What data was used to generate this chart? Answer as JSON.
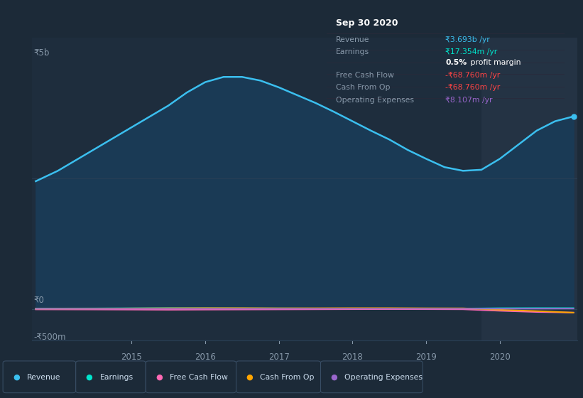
{
  "bg_color": "#1c2a38",
  "plot_bg": "#1e2d3d",
  "overlay_bg": "#243344",
  "ylabel_5b": "₹5b",
  "ylabel_0": "₹0",
  "ylabel_neg500m": "-₹500m",
  "x_labels": [
    "2015",
    "2016",
    "2017",
    "2018",
    "2019",
    "2020"
  ],
  "legend_items": [
    {
      "label": "Revenue",
      "color": "#3bbfef"
    },
    {
      "label": "Earnings",
      "color": "#00e5cc"
    },
    {
      "label": "Free Cash Flow",
      "color": "#ff69b4"
    },
    {
      "label": "Cash From Op",
      "color": "#ffa500"
    },
    {
      "label": "Operating Expenses",
      "color": "#9966cc"
    }
  ],
  "info_box_title": "Sep 30 2020",
  "info_box_bg": "#0a0a0a",
  "info_box_sep_color": "#2a2a3a",
  "info_rows": [
    {
      "label": "Revenue",
      "value": "₹3.693b /yr",
      "vcolor": "#3bbfef",
      "label_color": "#8899aa"
    },
    {
      "label": "Earnings",
      "value": "₹17.354m /yr",
      "vcolor": "#00e5cc",
      "label_color": "#8899aa"
    },
    {
      "label": "",
      "value": "0.5% profit margin",
      "vcolor": "#ffffff",
      "label_color": ""
    },
    {
      "label": "Free Cash Flow",
      "value": "-₹68.760m /yr",
      "vcolor": "#ff4444",
      "label_color": "#8899aa"
    },
    {
      "label": "Cash From Op",
      "value": "-₹68.760m /yr",
      "vcolor": "#ff4444",
      "label_color": "#8899aa"
    },
    {
      "label": "Operating Expenses",
      "value": "₹8.107m /yr",
      "vcolor": "#9966cc",
      "label_color": "#8899aa"
    }
  ],
  "revenue_x": [
    2013.7,
    2014.0,
    2014.3,
    2014.6,
    2014.9,
    2015.2,
    2015.5,
    2015.75,
    2016.0,
    2016.25,
    2016.5,
    2016.75,
    2017.0,
    2017.25,
    2017.5,
    2017.75,
    2018.0,
    2018.25,
    2018.5,
    2018.75,
    2019.0,
    2019.25,
    2019.5,
    2019.75,
    2020.0,
    2020.25,
    2020.5,
    2020.75,
    2021.0
  ],
  "revenue_y": [
    2.45,
    2.65,
    2.9,
    3.15,
    3.4,
    3.65,
    3.9,
    4.15,
    4.35,
    4.45,
    4.45,
    4.38,
    4.25,
    4.1,
    3.95,
    3.78,
    3.6,
    3.42,
    3.25,
    3.05,
    2.88,
    2.72,
    2.65,
    2.67,
    2.88,
    3.15,
    3.42,
    3.6,
    3.693
  ],
  "revenue_color": "#3bbfef",
  "revenue_fill": "#1a3a55",
  "earnings_x": [
    2013.7,
    2014.5,
    2015.0,
    2015.5,
    2016.0,
    2016.5,
    2017.0,
    2017.5,
    2018.0,
    2018.5,
    2019.0,
    2019.5,
    2019.75,
    2020.0,
    2020.5,
    2021.0
  ],
  "earnings_y": [
    0.01,
    0.012,
    0.015,
    0.018,
    0.016,
    0.014,
    0.013,
    0.011,
    0.01,
    0.009,
    0.006,
    0.01,
    0.012,
    0.016,
    0.018,
    0.01735
  ],
  "earnings_color": "#00e5cc",
  "fcf_x": [
    2013.7,
    2014.5,
    2015.0,
    2015.5,
    2016.0,
    2016.5,
    2017.0,
    2017.5,
    2018.0,
    2018.5,
    2019.0,
    2019.5,
    2020.0,
    2020.5,
    2021.0
  ],
  "fcf_y": [
    -0.008,
    -0.01,
    -0.012,
    -0.015,
    -0.012,
    -0.01,
    -0.008,
    -0.006,
    -0.004,
    -0.003,
    -0.004,
    -0.006,
    -0.035,
    -0.058,
    -0.0688
  ],
  "fcf_color": "#ff69b4",
  "cashop_x": [
    2013.7,
    2014.5,
    2015.0,
    2015.5,
    2016.0,
    2016.5,
    2017.0,
    2017.5,
    2018.0,
    2018.5,
    2019.0,
    2019.5,
    2020.0,
    2020.5,
    2021.0
  ],
  "cashop_y": [
    0.005,
    0.008,
    0.012,
    0.015,
    0.018,
    0.018,
    0.015,
    0.016,
    0.018,
    0.018,
    0.015,
    0.014,
    -0.015,
    -0.04,
    -0.0688
  ],
  "cashop_color": "#ffa500",
  "opex_x": [
    2013.7,
    2014.5,
    2015.0,
    2015.5,
    2016.0,
    2016.5,
    2017.0,
    2017.5,
    2018.0,
    2018.5,
    2019.0,
    2019.5,
    2020.0,
    2020.5,
    2021.0
  ],
  "opex_y": [
    0.003,
    0.004,
    0.005,
    0.005,
    0.005,
    0.005,
    0.005,
    0.005,
    0.006,
    0.006,
    0.005,
    0.005,
    0.006,
    0.007,
    0.008107
  ],
  "opex_color": "#9966cc",
  "ylim": [
    -0.6,
    5.2
  ],
  "xlim": [
    2013.65,
    2021.05
  ],
  "overlay_x_start": 2019.75,
  "gridline_color": "#2a3f55",
  "y0_line_color": "#2e4258",
  "text_color_label": "#8899aa",
  "text_color_tick": "#8899aa"
}
